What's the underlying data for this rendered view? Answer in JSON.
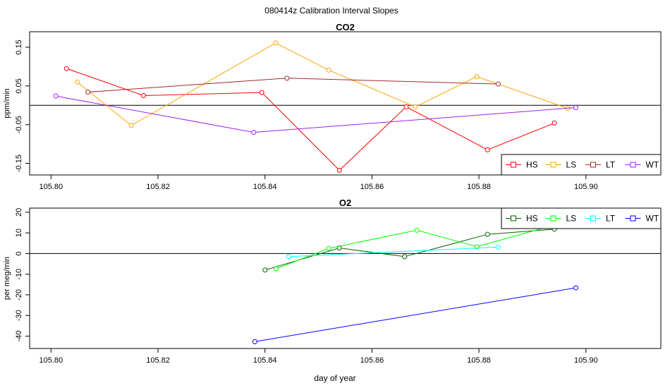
{
  "page_title": "080414z   Calibration Interval Slopes",
  "xlabel": "day of year",
  "chart_data": [
    {
      "type": "line",
      "title": "CO2",
      "xlabel": "",
      "ylabel": "ppm/min",
      "xlim": [
        105.796,
        105.914
      ],
      "ylim": [
        -0.18,
        0.19
      ],
      "xticks": [
        "105.80",
        "105.82",
        "105.84",
        "105.86",
        "105.88",
        "105.90"
      ],
      "xtick_values": [
        105.8,
        105.82,
        105.84,
        105.86,
        105.88,
        105.9
      ],
      "yticks": [
        "-0.15",
        "-0.05",
        "0.05",
        "0.15"
      ],
      "ytick_values": [
        -0.15,
        -0.05,
        0.05,
        0.15
      ],
      "hline": 0,
      "legend_position": "bottom-right",
      "series": [
        {
          "name": "HS",
          "color": "#ff0000",
          "x": [
            105.8029,
            105.8173,
            105.8394,
            105.8539,
            105.8664,
            105.8816,
            105.8941
          ],
          "y": [
            0.095,
            0.025,
            0.033,
            -0.168,
            -0.004,
            -0.115,
            -0.046
          ]
        },
        {
          "name": "LS",
          "color": "#ffa500",
          "x": [
            105.8049,
            105.815,
            105.842,
            105.8519,
            105.8681,
            105.8796,
            105.8966
          ],
          "y": [
            0.06,
            -0.052,
            0.161,
            0.091,
            -0.004,
            0.074,
            -0.008
          ]
        },
        {
          "name": "LT",
          "color": "#a52a2a",
          "x": [
            105.8069,
            105.8441,
            105.8836
          ],
          "y": [
            0.034,
            0.07,
            0.055
          ]
        },
        {
          "name": "WT",
          "color": "#a020f0",
          "x": [
            105.8009,
            105.8379,
            105.8981
          ],
          "y": [
            0.024,
            -0.07,
            -0.006
          ]
        }
      ]
    },
    {
      "type": "line",
      "title": "O2",
      "xlabel": "day of year",
      "ylabel": "per meg/min",
      "xlim": [
        105.796,
        105.914
      ],
      "ylim": [
        -46,
        22
      ],
      "xticks": [
        "105.80",
        "105.82",
        "105.84",
        "105.86",
        "105.88",
        "105.90"
      ],
      "xtick_values": [
        105.8,
        105.82,
        105.84,
        105.86,
        105.88,
        105.9
      ],
      "yticks": [
        "-40",
        "-30",
        "-20",
        "-10",
        "0",
        "10",
        "20"
      ],
      "ytick_values": [
        -40,
        -30,
        -20,
        -10,
        0,
        10,
        20
      ],
      "hline": 0,
      "legend_position": "top-right",
      "series": [
        {
          "name": "HS",
          "color": "#006400",
          "x": [
            105.84,
            105.8539,
            105.8661,
            105.8816,
            105.8941
          ],
          "y": [
            -8,
            2.7,
            -1.5,
            9.3,
            11.8
          ]
        },
        {
          "name": "LS",
          "color": "#00ff00",
          "x": [
            105.8421,
            105.8519,
            105.8684,
            105.8796,
            105.8966
          ],
          "y": [
            -7.4,
            2.5,
            11.3,
            3.3,
            15.6
          ]
        },
        {
          "name": "LT",
          "color": "#00ffff",
          "x": [
            105.8444,
            105.8836
          ],
          "y": [
            -1.5,
            3.1
          ]
        },
        {
          "name": "WT",
          "color": "#0000ff",
          "x": [
            105.8381,
            105.8981
          ],
          "y": [
            -42.7,
            -16.6
          ]
        }
      ]
    }
  ]
}
